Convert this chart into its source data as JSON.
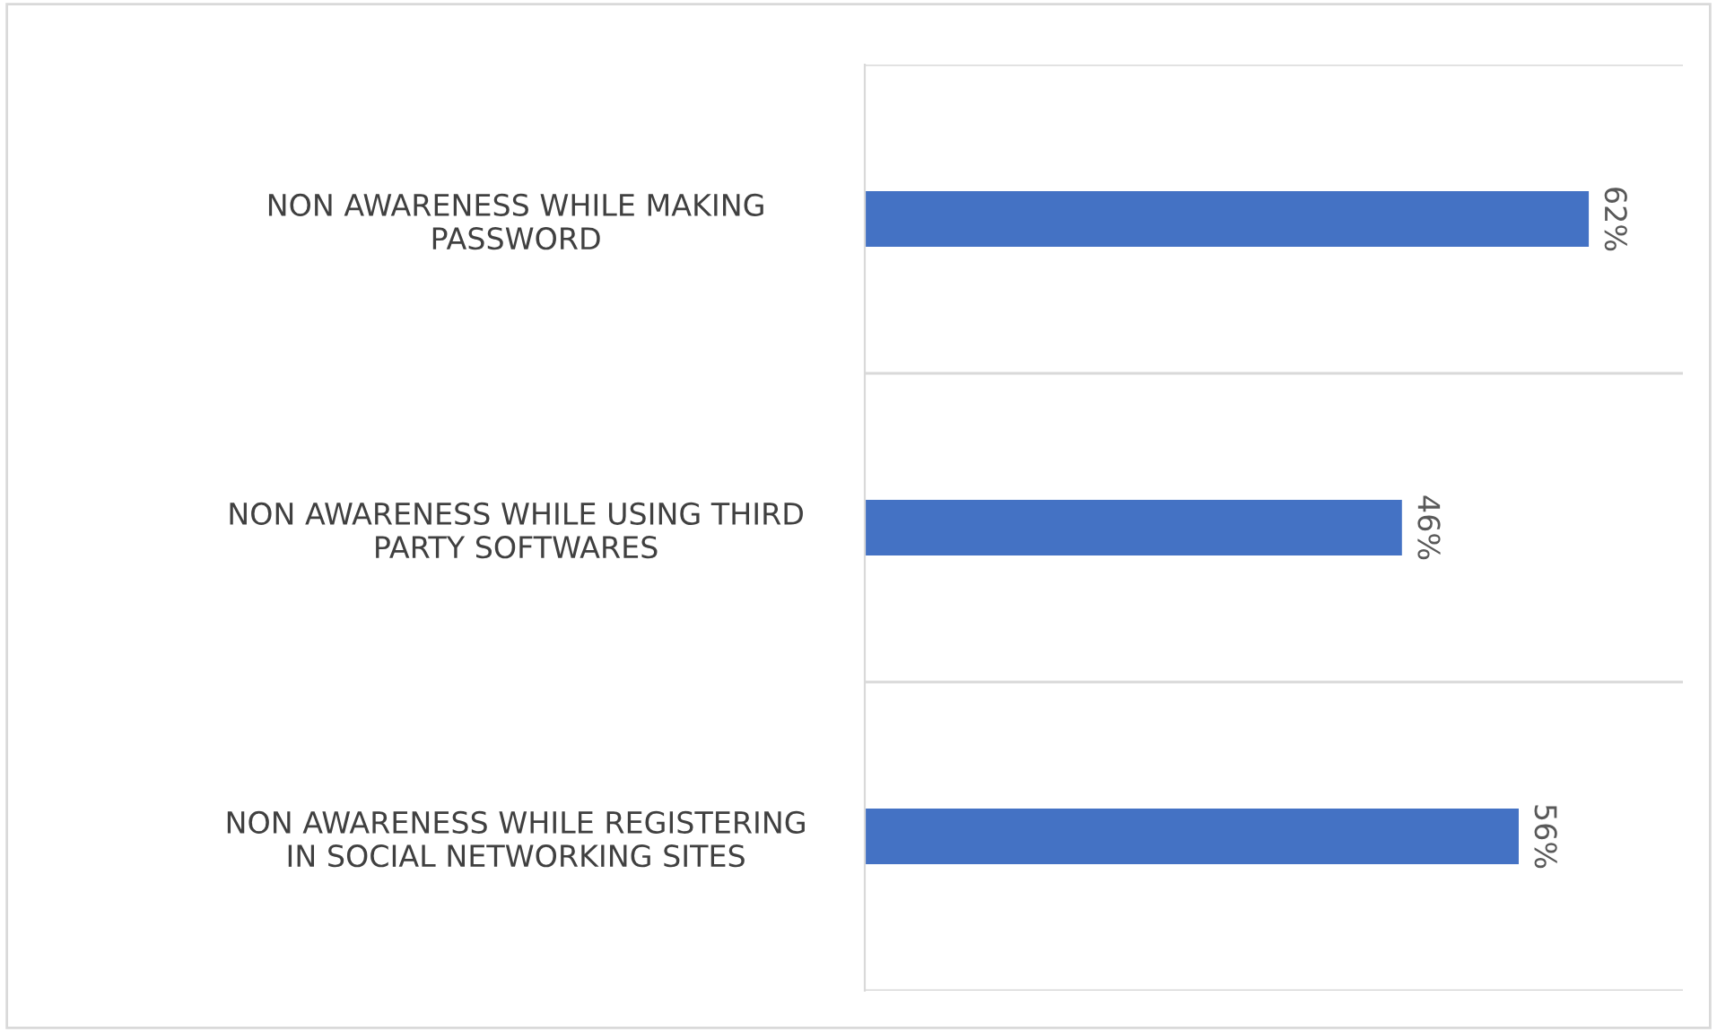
{
  "chart_data": {
    "type": "bar",
    "orientation": "horizontal",
    "categories": [
      "NON AWARENESS WHILE MAKING\nPASSWORD",
      "NON AWARENESS WHILE USING THIRD\nPARTY SOFTWARES",
      "NON AWARENESS WHILE REGISTERING\nIN SOCIAL NETWORKING SITES"
    ],
    "values": [
      62,
      46,
      56
    ],
    "color": "#4472c4",
    "value_labels": [
      "62%",
      "46%",
      "56%"
    ],
    "grid": "y",
    "tick_labels": "y"
  }
}
